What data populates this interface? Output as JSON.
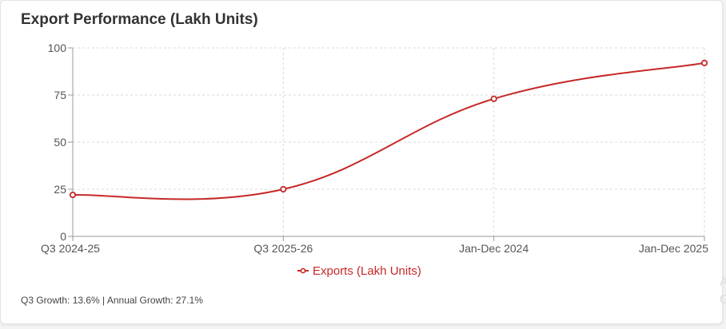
{
  "header": {
    "title": "Export Performance (Lakh Units)"
  },
  "footer": {
    "growth_text": "Q3 Growth: 13.6% | Annual Growth: 27.1%"
  },
  "edge_text": [
    "A",
    "G"
  ],
  "colors": {
    "series": "#c62828",
    "grid": "#d9d9d9",
    "axis": "#999999",
    "tick_text": "#555555"
  },
  "chart_data": {
    "type": "line",
    "categories": [
      "Q3 2024-25",
      "Q3 2025-26",
      "Jan-Dec 2024",
      "Jan-Dec 2025"
    ],
    "series": [
      {
        "name": "Exports (Lakh Units)",
        "values": [
          22,
          25,
          73,
          92
        ]
      }
    ],
    "ylim": [
      0,
      100
    ],
    "yticks": [
      0,
      25,
      50,
      75,
      100
    ],
    "grid": true,
    "legend": "bottom",
    "xlabel": "",
    "ylabel": ""
  }
}
